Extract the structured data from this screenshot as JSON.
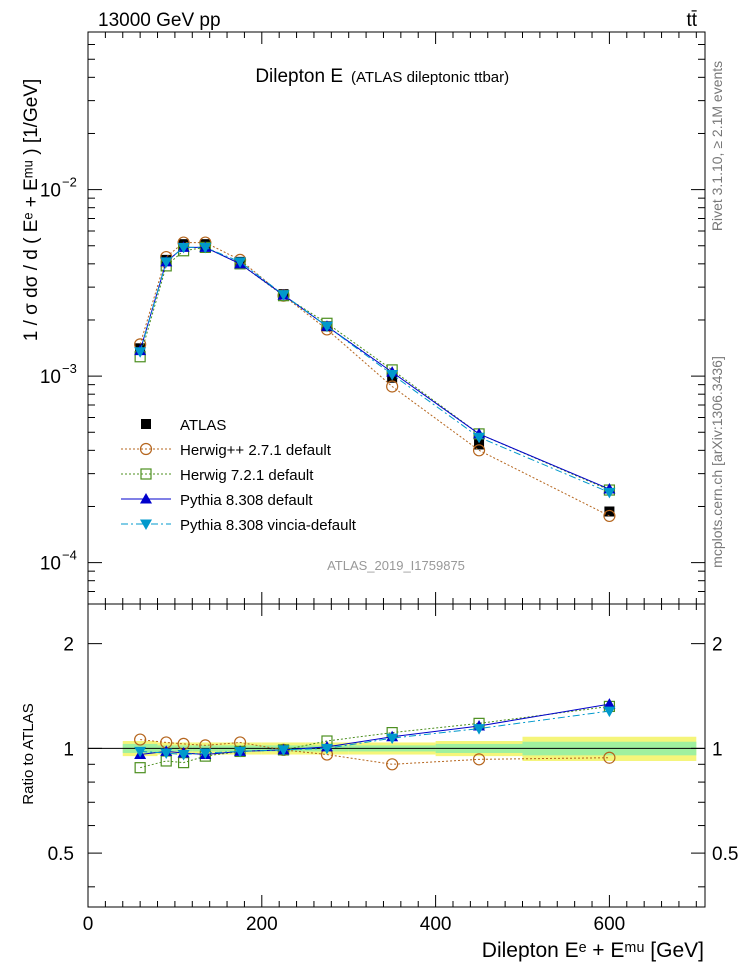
{
  "header": {
    "energy_label": "13000 GeV pp",
    "process_label": "tt̄"
  },
  "side_labels": {
    "rivet": "Rivet 3.1.10, ≥ 2.1M events",
    "mcplots": "mcplots.cern.ch [arXiv:1306.3436]"
  },
  "colors": {
    "atlas": "#000000",
    "herwigpp": "#b5651d",
    "herwig7": "#4c8f1f",
    "pythia": "#0000cc",
    "vincia": "#0099cc",
    "band_inner": "#9ff09f",
    "band_outer": "#f5f57a"
  },
  "chart_data": [
    {
      "type": "line",
      "title": "Dilepton E",
      "subtitle": "(ATLAS dileptonic ttbar)",
      "analysis_label": "ATLAS_2019_I1759875",
      "ylabel": "1 / σ  dσ / d ( Eᵉ + Eᵐᵘ ) [1/GeV]",
      "yscale": "log",
      "ylim": [
        6e-05,
        0.07
      ],
      "xlim": [
        0,
        710
      ],
      "y_ticks": [
        {
          "value": 0.01,
          "base": "10",
          "exp": "−2"
        },
        {
          "value": 0.001,
          "base": "10",
          "exp": "−3"
        },
        {
          "value": 0.0001,
          "base": "10",
          "exp": "−4"
        }
      ],
      "legend_position": "bottom-left",
      "x": [
        60,
        90,
        110,
        135,
        175,
        225,
        275,
        350,
        450,
        600
      ],
      "series": [
        {
          "key": "atlas",
          "name": "ATLAS",
          "marker": "square-filled",
          "line": "none",
          "values": [
            0.00141,
            0.0042,
            0.0051,
            0.0051,
            0.0041,
            0.00275,
            0.00185,
            0.00098,
            0.00043,
            0.000188
          ]
        },
        {
          "key": "herwigpp",
          "name": "Herwig++ 2.7.1 default",
          "marker": "circle-open",
          "line": "dotted",
          "values": [
            0.00148,
            0.00435,
            0.0052,
            0.0052,
            0.0042,
            0.0027,
            0.00178,
            0.00088,
            0.0004,
            0.000178
          ]
        },
        {
          "key": "herwig7",
          "name": "Herwig 7.2.1 default",
          "marker": "square-open",
          "line": "dotted",
          "values": [
            0.00127,
            0.0039,
            0.0047,
            0.0049,
            0.004,
            0.0027,
            0.00192,
            0.00108,
            0.00049,
            0.000245
          ]
        },
        {
          "key": "pythia",
          "name": "Pythia 8.308 default",
          "marker": "triangle-up",
          "line": "solid",
          "values": [
            0.00137,
            0.0041,
            0.0049,
            0.0049,
            0.004,
            0.00272,
            0.00185,
            0.00105,
            0.00049,
            0.000248
          ]
        },
        {
          "key": "vincia",
          "name": "Pythia 8.308 vincia-default",
          "marker": "triangle-down",
          "line": "dashdot",
          "values": [
            0.00135,
            0.0041,
            0.0049,
            0.0049,
            0.0041,
            0.00273,
            0.00185,
            0.00102,
            0.00047,
            0.000238
          ]
        }
      ]
    },
    {
      "type": "line",
      "ylabel": "Ratio to ATLAS",
      "xlabel": "Dilepton Eᵉ + Eᵐᵘ [GeV]",
      "ylim": [
        0.35,
        2.6
      ],
      "xlim": [
        0,
        710
      ],
      "y_ticks": [
        0.5,
        1,
        2
      ],
      "y_tick_labels": [
        "0.5",
        "1",
        "2"
      ],
      "x_ticks": [
        0,
        200,
        400,
        600
      ],
      "x_tick_labels": [
        "0",
        "200",
        "400",
        "600"
      ],
      "x": [
        60,
        90,
        110,
        135,
        175,
        225,
        275,
        350,
        450,
        600
      ],
      "uncertainty_bins": [
        {
          "x0": 40,
          "x1": 80,
          "inner": [
            0.97,
            1.03
          ],
          "outer": [
            0.95,
            1.05
          ]
        },
        {
          "x0": 80,
          "x1": 100,
          "inner": [
            0.98,
            1.02
          ],
          "outer": [
            0.96,
            1.04
          ]
        },
        {
          "x0": 100,
          "x1": 120,
          "inner": [
            0.98,
            1.02
          ],
          "outer": [
            0.96,
            1.04
          ]
        },
        {
          "x0": 120,
          "x1": 150,
          "inner": [
            0.98,
            1.02
          ],
          "outer": [
            0.96,
            1.04
          ]
        },
        {
          "x0": 150,
          "x1": 200,
          "inner": [
            0.98,
            1.02
          ],
          "outer": [
            0.96,
            1.04
          ]
        },
        {
          "x0": 200,
          "x1": 250,
          "inner": [
            0.98,
            1.02
          ],
          "outer": [
            0.96,
            1.04
          ]
        },
        {
          "x0": 250,
          "x1": 300,
          "inner": [
            0.98,
            1.02
          ],
          "outer": [
            0.96,
            1.04
          ]
        },
        {
          "x0": 300,
          "x1": 400,
          "inner": [
            0.98,
            1.02
          ],
          "outer": [
            0.96,
            1.04
          ]
        },
        {
          "x0": 400,
          "x1": 500,
          "inner": [
            0.97,
            1.03
          ],
          "outer": [
            0.95,
            1.05
          ]
        },
        {
          "x0": 500,
          "x1": 700,
          "inner": [
            0.955,
            1.045
          ],
          "outer": [
            0.92,
            1.08
          ]
        }
      ],
      "series": [
        {
          "key": "herwigpp",
          "values": [
            1.06,
            1.04,
            1.03,
            1.02,
            1.04,
            0.99,
            0.96,
            0.9,
            0.93,
            0.94
          ]
        },
        {
          "key": "herwig7",
          "values": [
            0.88,
            0.92,
            0.91,
            0.95,
            0.98,
            0.99,
            1.05,
            1.11,
            1.18,
            1.32
          ]
        },
        {
          "key": "pythia",
          "values": [
            0.96,
            0.98,
            0.97,
            0.96,
            0.98,
            0.99,
            1.01,
            1.08,
            1.16,
            1.34
          ]
        },
        {
          "key": "vincia",
          "values": [
            0.98,
            0.97,
            0.96,
            0.97,
            0.98,
            0.99,
            1.0,
            1.07,
            1.14,
            1.28
          ]
        }
      ]
    }
  ]
}
